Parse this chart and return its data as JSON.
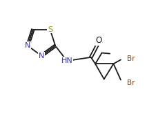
{
  "bg_color": "#ffffff",
  "line_color": "#1a1a1a",
  "N_color": "#3333aa",
  "S_color": "#999900",
  "O_color": "#1a1a1a",
  "Br_color": "#8B4513",
  "HN_color": "#3333aa",
  "figsize": [
    2.13,
    1.91
  ],
  "dpi": 100,
  "xlim": [
    0,
    10
  ],
  "ylim": [
    0,
    9
  ]
}
